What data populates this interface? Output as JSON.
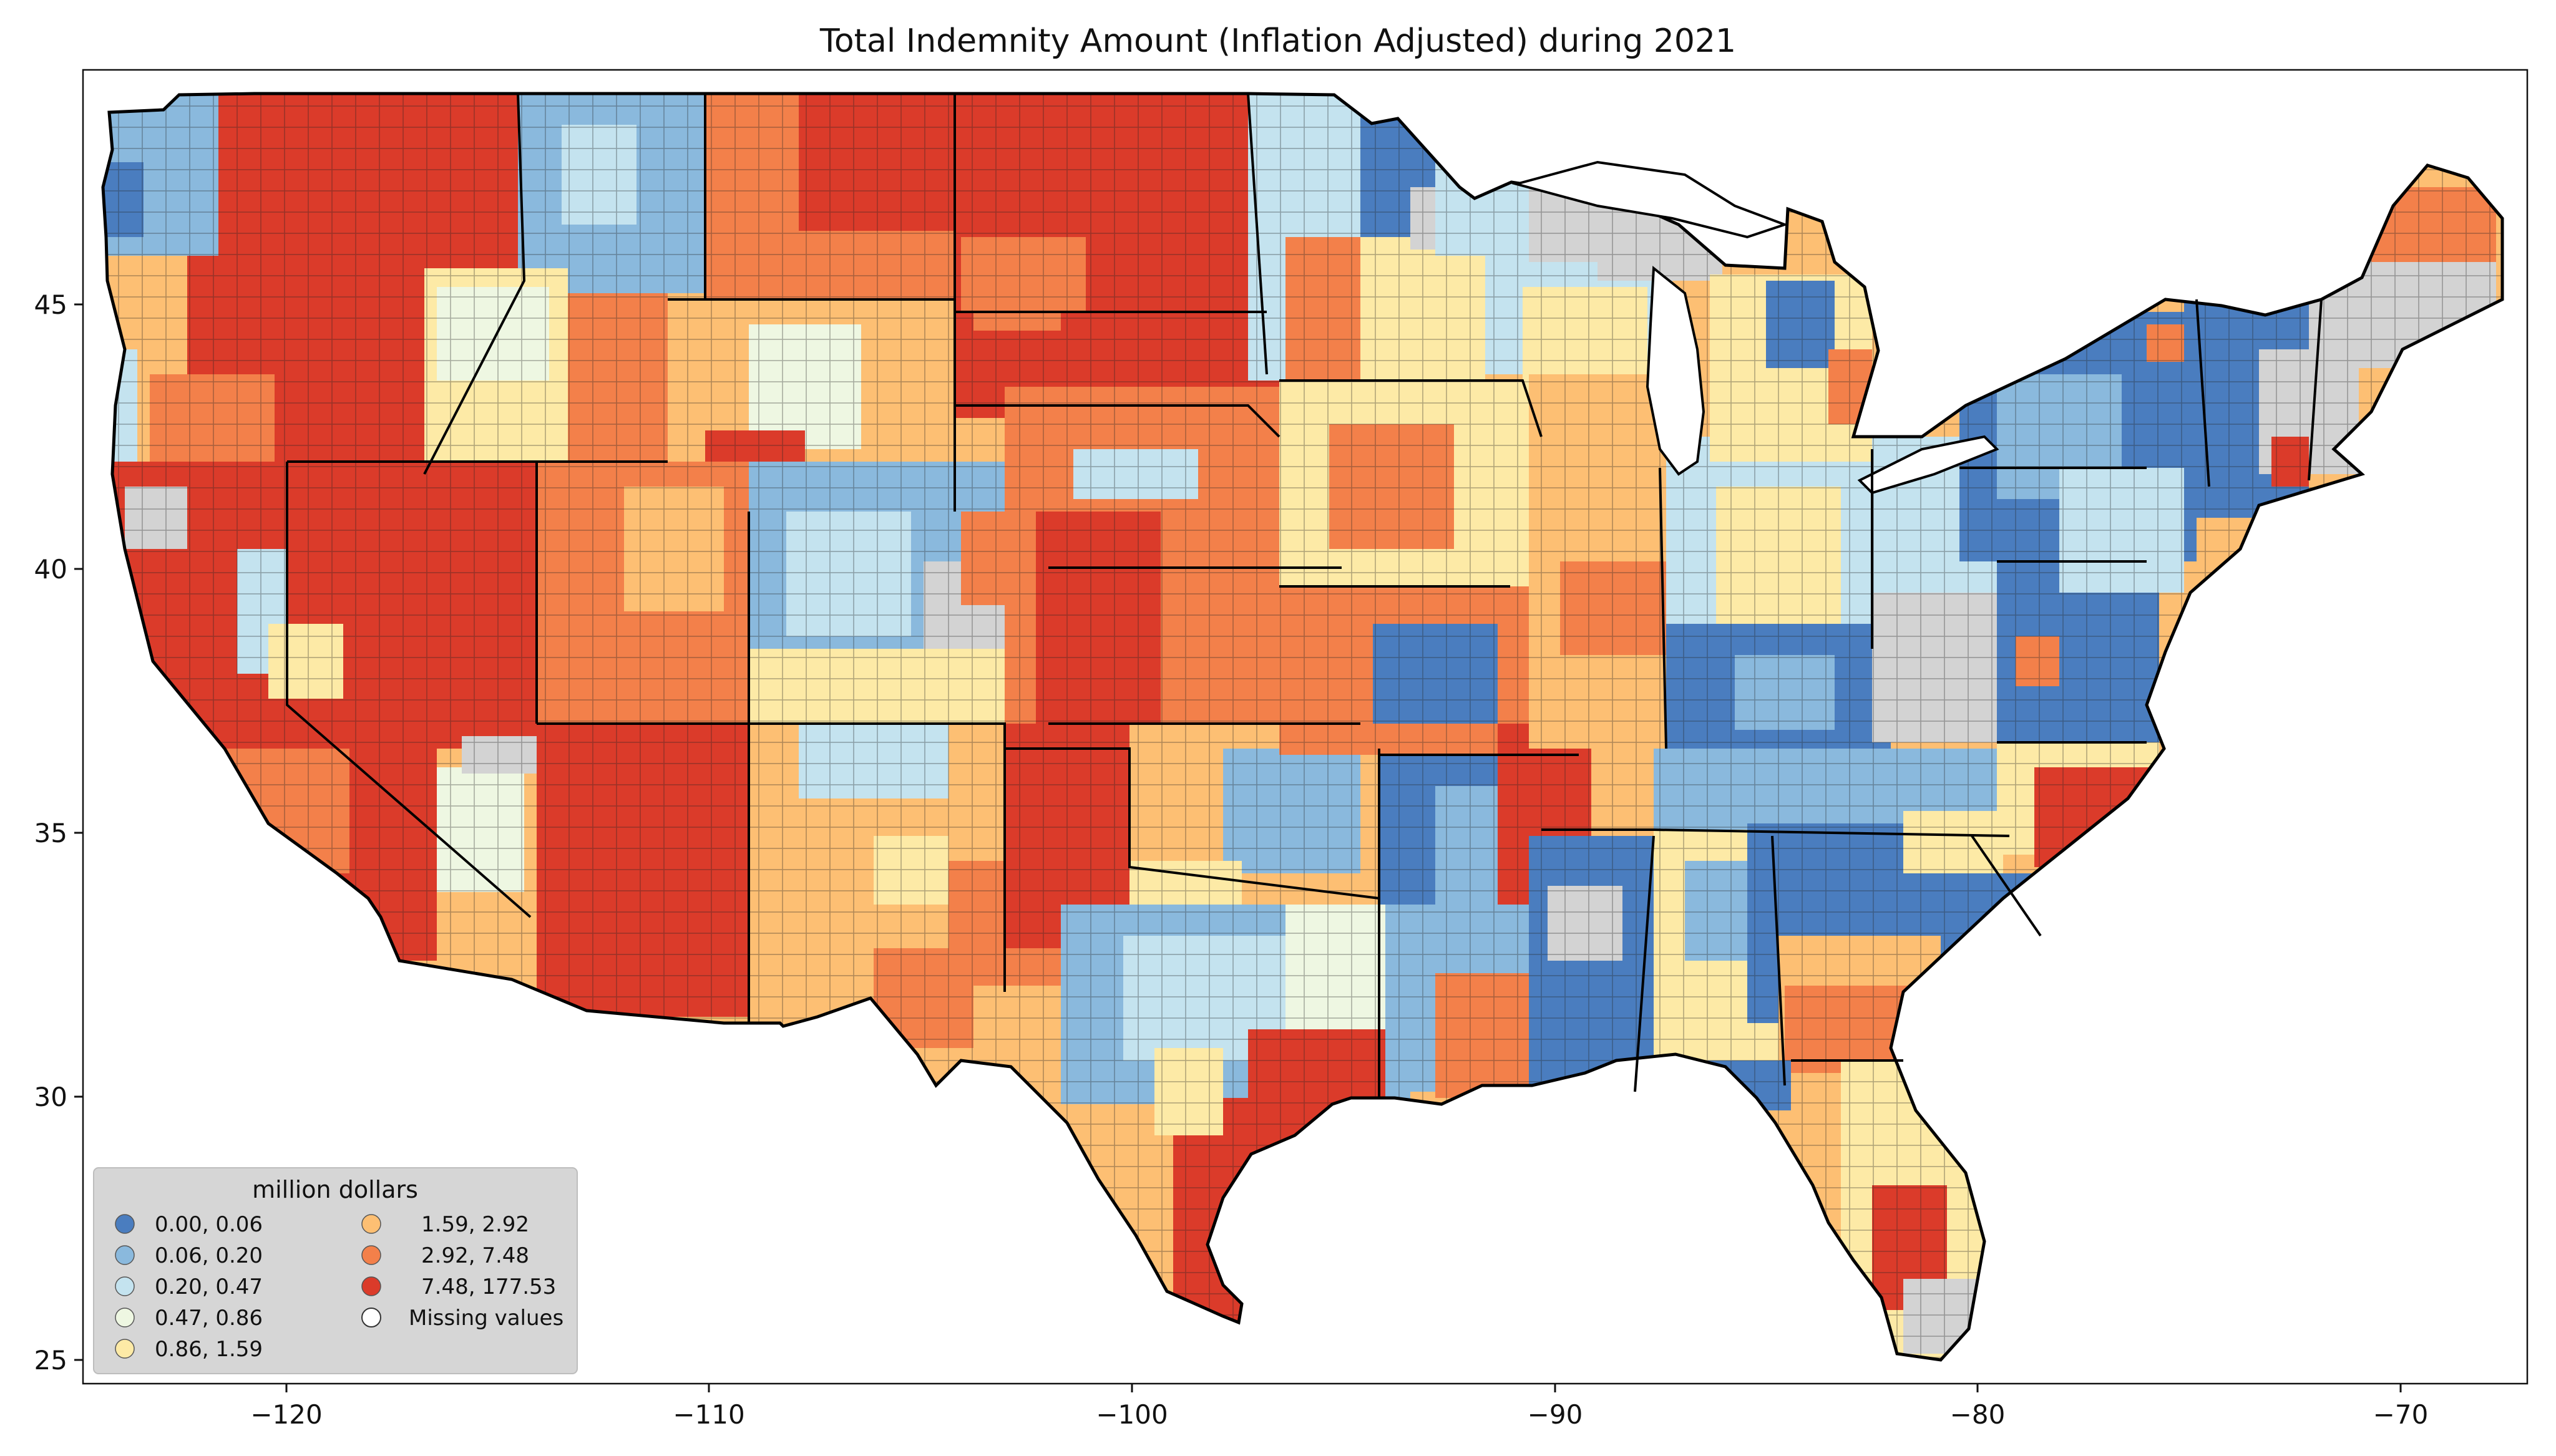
{
  "title": "Total Indemnity Amount  (Inflation Adjusted) during 2021",
  "colors": {
    "c0": "#4a7dbf",
    "c1": "#8ab9dd",
    "c2": "#c4e3ef",
    "c3": "#eef7e2",
    "c4": "#fdeaa6",
    "c5": "#fdbf73",
    "c6": "#f3804a",
    "c7": "#db3b2a",
    "missing": "#d3d3d3"
  },
  "map": {
    "xaxis_ticks": [
      "−120",
      "−110",
      "−100",
      "−90",
      "−80",
      "−70"
    ],
    "yaxis_ticks": [
      "25",
      "30",
      "35",
      "40",
      "45"
    ]
  },
  "legend": {
    "title": "million dollars",
    "items": [
      {
        "label": "0.00,   0.06",
        "color": "#4a7dbf"
      },
      {
        "label": "0.06,   0.20",
        "color": "#8ab9dd"
      },
      {
        "label": "0.20,   0.47",
        "color": "#c4e3ef"
      },
      {
        "label": "0.47,   0.86",
        "color": "#eef7e2"
      },
      {
        "label": "0.86,   1.59",
        "color": "#fdeaa6"
      },
      {
        "label": "1.59,   2.92",
        "color": "#fdbf73"
      },
      {
        "label": "2.92,   7.48",
        "color": "#f3804a"
      },
      {
        "label": "7.48, 177.53",
        "color": "#db3b2a"
      },
      {
        "label": "Missing values",
        "color": "#ffffff"
      }
    ]
  }
}
